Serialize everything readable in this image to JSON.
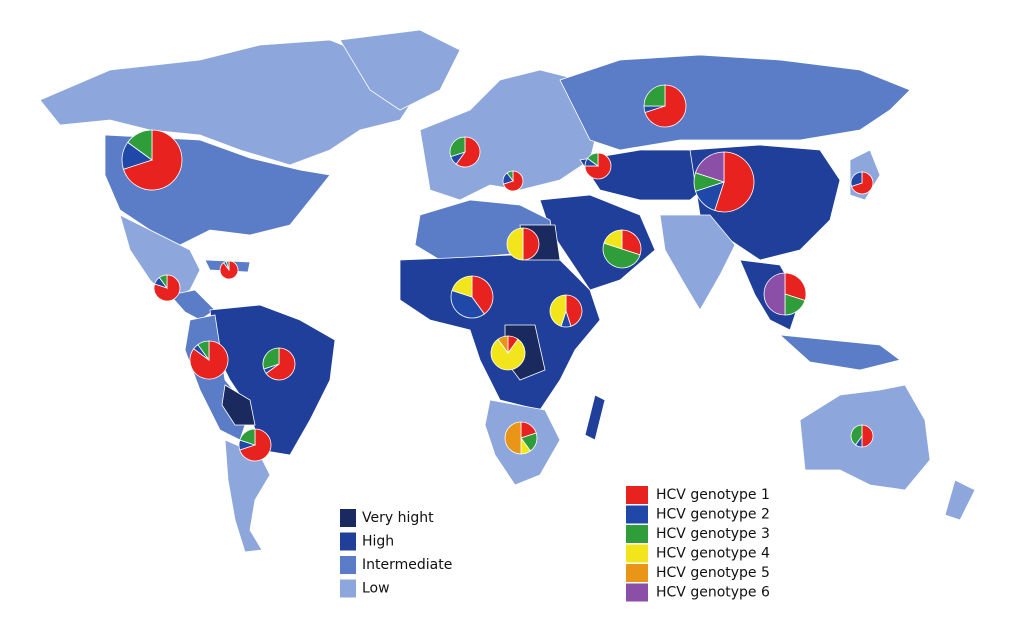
{
  "prevalence_legend": [
    {
      "label": "Very hight",
      "color": "#1a2a5e"
    },
    {
      "label": "High",
      "color": "#1f3f9a"
    },
    {
      "label": "Intermediate",
      "color": "#5b7cc6"
    },
    {
      "label": "Low",
      "color": "#8da6dc"
    }
  ],
  "genotype_legend": [
    {
      "label": "HCV genotype 1",
      "color": "#e8231f"
    },
    {
      "label": "HCV genotype 2",
      "color": "#1f48a8"
    },
    {
      "label": "HCV genotype 3",
      "color": "#2f9e3a"
    },
    {
      "label": "HCV genotype 4",
      "color": "#f2e51c"
    },
    {
      "label": "HCV genotype 5",
      "color": "#e89518"
    },
    {
      "label": "HCV genotype 6",
      "color": "#8c4fa8"
    }
  ],
  "pies": [
    [
      70,
      15,
      15,
      0,
      0,
      0
    ],
    [
      80,
      10,
      10,
      0,
      0,
      0
    ],
    [
      90,
      5,
      5,
      0,
      0,
      0
    ],
    [
      85,
      5,
      10,
      0,
      0,
      0
    ],
    [
      65,
      5,
      30,
      0,
      0,
      0
    ],
    [
      70,
      10,
      20,
      0,
      0,
      0
    ],
    [
      60,
      10,
      30,
      0,
      0,
      0
    ],
    [
      70,
      20,
      10,
      0,
      0,
      0
    ],
    [
      75,
      10,
      15,
      0,
      0,
      0
    ],
    [
      70,
      5,
      25,
      0,
      0,
      0
    ],
    [
      50,
      0,
      0,
      50,
      0,
      0
    ],
    [
      30,
      0,
      50,
      20,
      0,
      0
    ],
    [
      55,
      15,
      10,
      0,
      0,
      20
    ],
    [
      70,
      30,
      0,
      0,
      0,
      0
    ],
    [
      30,
      0,
      20,
      0,
      0,
      50
    ],
    [
      40,
      40,
      0,
      20,
      0,
      0
    ],
    [
      45,
      10,
      0,
      45,
      0,
      0
    ],
    [
      10,
      0,
      0,
      80,
      10,
      0
    ],
    [
      20,
      0,
      20,
      10,
      50,
      0
    ],
    [
      50,
      10,
      40,
      0,
      0,
      0
    ]
  ]
}
